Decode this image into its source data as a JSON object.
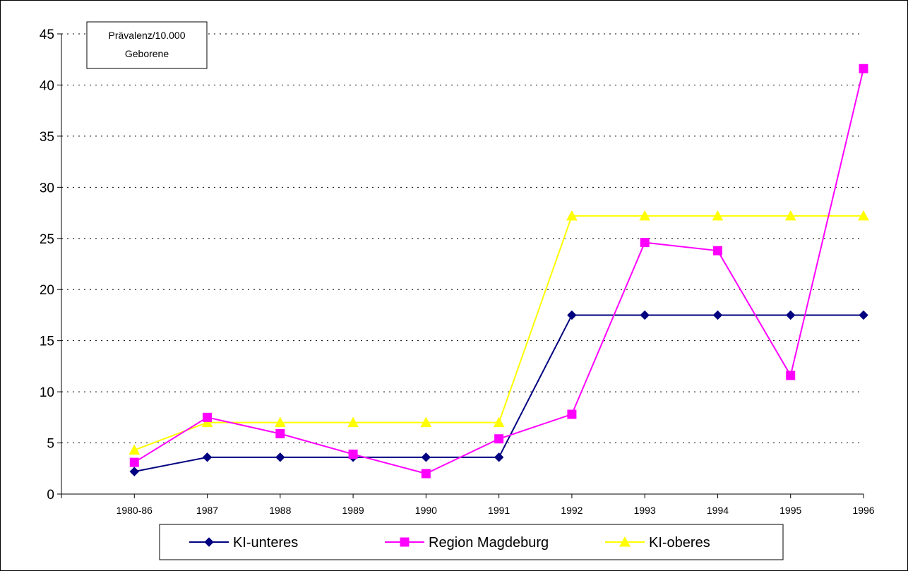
{
  "chart_data": {
    "type": "line",
    "title": "",
    "xlabel": "",
    "ylabel": "Prävalenz/10.000 Geborene",
    "ylabel_lines": [
      "Prävalenz/10.000",
      "Geborene"
    ],
    "ylim": [
      0,
      45
    ],
    "yticks": [
      0,
      5,
      10,
      15,
      20,
      25,
      30,
      35,
      40,
      45
    ],
    "grid": "horizontal-dotted",
    "legend": "bottom",
    "categories": [
      "1980-86",
      "1987",
      "1988",
      "1989",
      "1990",
      "1991",
      "1992",
      "1993",
      "1994",
      "1995",
      "1996"
    ],
    "series": [
      {
        "name": "KI-unteres",
        "color": "#000080",
        "marker": "diamond",
        "values": [
          2.2,
          3.6,
          3.6,
          3.6,
          3.6,
          3.6,
          17.5,
          17.5,
          17.5,
          17.5,
          17.5
        ]
      },
      {
        "name": "Region Magdeburg",
        "color": "#FF00FF",
        "marker": "square",
        "values": [
          3.1,
          7.5,
          5.9,
          3.9,
          2.0,
          5.4,
          7.8,
          24.6,
          23.8,
          11.6,
          41.6
        ]
      },
      {
        "name": "KI-oberes",
        "color": "#FFFF00",
        "marker": "triangle",
        "values": [
          4.3,
          7.0,
          7.0,
          7.0,
          7.0,
          7.0,
          27.2,
          27.2,
          27.2,
          27.2,
          27.2
        ]
      }
    ]
  }
}
